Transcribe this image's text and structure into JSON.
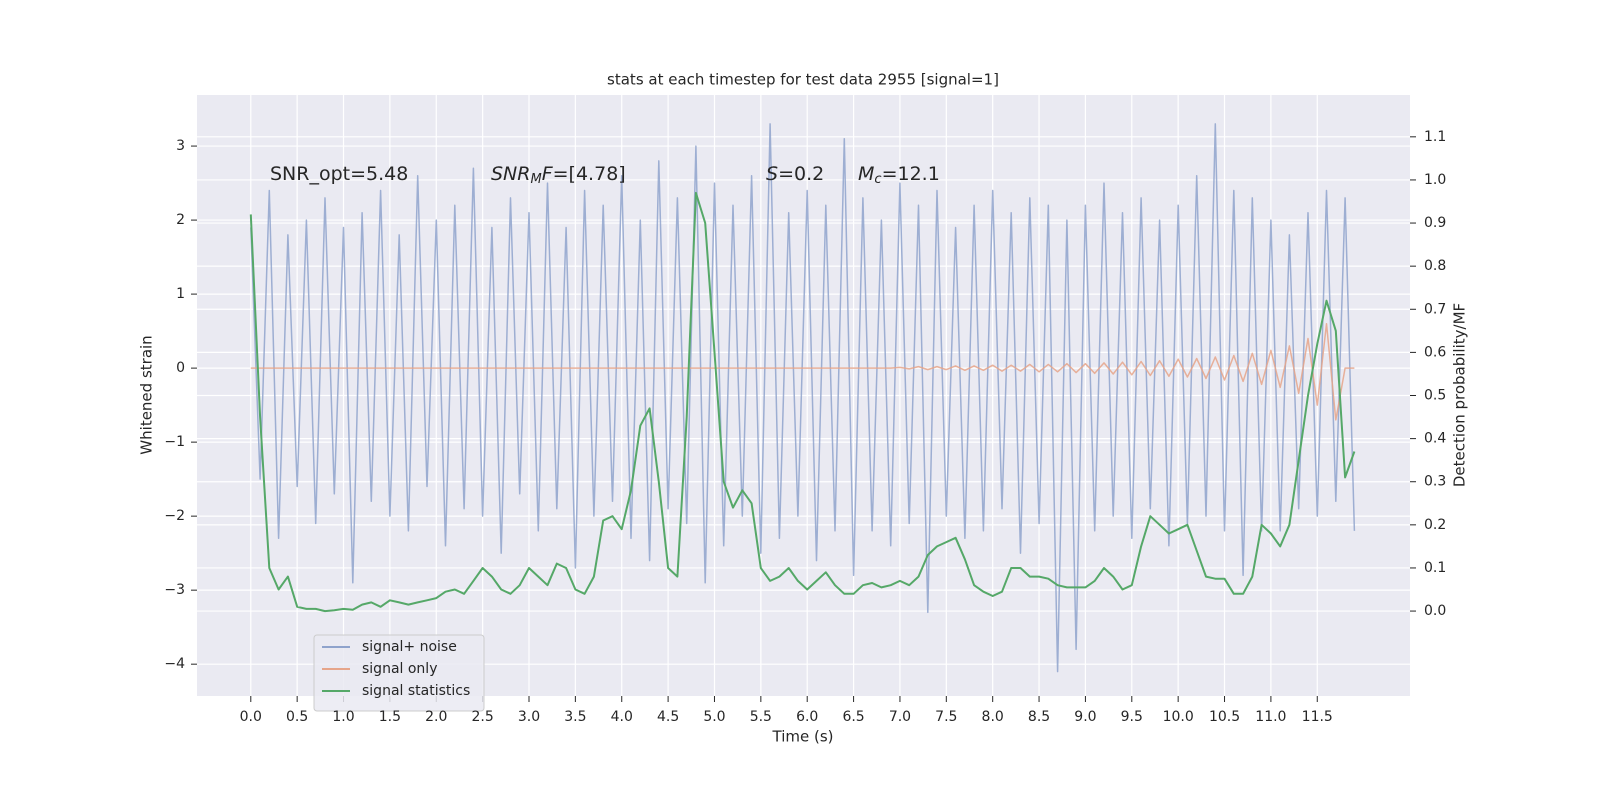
{
  "chart_data": {
    "type": "line",
    "title": "stats at each timestep for test data 2955 [signal=1]",
    "xlabel": "Time (s)",
    "ylabel": "Whitened strain",
    "y2label": "Detection probability/MF",
    "annotations": [
      [
        "SNR_opt=5.48"
      ],
      [
        "SNR",
        "M",
        "F",
        "=[4.78]"
      ],
      [
        "S",
        "=0.2"
      ],
      [
        "M",
        "c",
        "=12.1"
      ]
    ],
    "x": [
      0,
      0.1,
      0.2,
      0.3,
      0.4,
      0.5,
      0.6,
      0.7,
      0.8,
      0.9,
      1,
      1.1,
      1.2,
      1.3,
      1.4,
      1.5,
      1.6,
      1.7,
      1.8,
      1.9,
      2,
      2.1,
      2.2,
      2.3,
      2.4,
      2.5,
      2.6,
      2.7,
      2.8,
      2.9,
      3,
      3.1,
      3.2,
      3.3,
      3.4,
      3.5,
      3.6,
      3.7,
      3.8,
      3.9,
      4,
      4.1,
      4.2,
      4.3,
      4.4,
      4.5,
      4.6,
      4.7,
      4.8,
      4.9,
      5,
      5.1,
      5.2,
      5.3,
      5.4,
      5.5,
      5.6,
      5.7,
      5.8,
      5.9,
      6,
      6.1,
      6.2,
      6.3,
      6.4,
      6.5,
      6.6,
      6.7,
      6.8,
      6.9,
      7,
      7.1,
      7.2,
      7.3,
      7.4,
      7.5,
      7.6,
      7.7,
      7.8,
      7.9,
      8,
      8.1,
      8.2,
      8.3,
      8.4,
      8.5,
      8.6,
      8.7,
      8.8,
      8.9,
      9,
      9.1,
      9.2,
      9.3,
      9.4,
      9.5,
      9.6,
      9.7,
      9.8,
      9.9,
      10,
      10.1,
      10.2,
      10.3,
      10.4,
      10.5,
      10.6,
      10.7,
      10.8,
      10.9,
      11,
      11.1,
      11.2,
      11.3,
      11.4,
      11.5,
      11.6,
      11.7,
      11.8,
      11.9
    ],
    "series": [
      {
        "name": "signal+ noise",
        "color": "#8fa3cc",
        "values": [
          1.9,
          -1.5,
          2.4,
          -2.3,
          1.8,
          -1.6,
          2.0,
          -2.1,
          2.3,
          -1.7,
          1.9,
          -2.9,
          2.1,
          -1.8,
          2.4,
          -2.0,
          1.8,
          -2.2,
          2.6,
          -1.6,
          2.0,
          -2.4,
          2.2,
          -1.9,
          2.7,
          -2.0,
          1.9,
          -2.5,
          2.3,
          -1.7,
          2.1,
          -2.2,
          2.5,
          -1.9,
          1.9,
          -2.7,
          2.4,
          -2.0,
          2.2,
          -1.8,
          2.6,
          -2.3,
          2.0,
          -2.6,
          2.8,
          -1.9,
          2.3,
          -2.1,
          3.0,
          -2.9,
          2.5,
          -2.4,
          2.2,
          -2.0,
          2.6,
          -2.5,
          3.3,
          -2.3,
          2.1,
          -2.0,
          2.4,
          -2.6,
          2.2,
          -2.2,
          3.1,
          -2.8,
          2.3,
          -2.2,
          2.0,
          -2.4,
          2.5,
          -2.1,
          2.2,
          -3.3,
          2.4,
          -2.0,
          1.9,
          -2.3,
          2.2,
          -2.2,
          2.4,
          -1.9,
          2.1,
          -2.5,
          2.3,
          -2.1,
          2.2,
          -4.1,
          2.0,
          -3.8,
          2.2,
          -2.2,
          2.5,
          -2.0,
          2.1,
          -2.3,
          2.3,
          -1.9,
          2.0,
          -2.4,
          2.2,
          -2.1,
          2.6,
          -2.0,
          3.3,
          -2.2,
          2.4,
          -2.8,
          2.3,
          -2.2,
          2.0,
          -2.2,
          1.8,
          -1.9,
          2.1,
          -2.0,
          2.4,
          -1.8,
          2.3,
          -2.2
        ]
      },
      {
        "name": "signal only",
        "color": "#e6a58a",
        "values": [
          0,
          0,
          0,
          0,
          0,
          0,
          0,
          0,
          0,
          0,
          0,
          0,
          0,
          0,
          0,
          0,
          0,
          0,
          0,
          0,
          0,
          0,
          0,
          0,
          0,
          0,
          0,
          0,
          0,
          0,
          0,
          0,
          0,
          0,
          0,
          0,
          0,
          0,
          0,
          0,
          0,
          0,
          0,
          0,
          0,
          0,
          0,
          0,
          0,
          0,
          0,
          0,
          0,
          0,
          0,
          0,
          0,
          0,
          0,
          0,
          0,
          0,
          0,
          0,
          0,
          0,
          0,
          0,
          0,
          0,
          0.01,
          -0.01,
          0.02,
          -0.02,
          0.02,
          -0.02,
          0.03,
          -0.03,
          0.03,
          -0.03,
          0.04,
          -0.04,
          0.04,
          -0.04,
          0.05,
          -0.05,
          0.05,
          -0.05,
          0.06,
          -0.06,
          0.06,
          -0.07,
          0.07,
          -0.08,
          0.08,
          -0.09,
          0.09,
          -0.1,
          0.1,
          -0.11,
          0.12,
          -0.12,
          0.13,
          -0.14,
          0.15,
          -0.16,
          0.17,
          -0.18,
          0.2,
          -0.22,
          0.24,
          -0.26,
          0.3,
          -0.34,
          0.4,
          -0.5,
          0.6,
          -0.7,
          0,
          0
        ]
      },
      {
        "name": "signal statistics",
        "color": "#55a868",
        "axis": "y2",
        "values": [
          0.92,
          0.45,
          0.1,
          0.05,
          0.08,
          0.01,
          0.005,
          0.005,
          0.0,
          0.002,
          0.005,
          0.003,
          0.015,
          0.02,
          0.01,
          0.025,
          0.02,
          0.015,
          0.02,
          0.025,
          0.03,
          0.045,
          0.05,
          0.04,
          0.07,
          0.1,
          0.08,
          0.05,
          0.04,
          0.06,
          0.1,
          0.08,
          0.06,
          0.11,
          0.1,
          0.05,
          0.04,
          0.08,
          0.21,
          0.22,
          0.19,
          0.28,
          0.43,
          0.47,
          0.3,
          0.1,
          0.08,
          0.45,
          0.97,
          0.9,
          0.6,
          0.3,
          0.24,
          0.28,
          0.25,
          0.1,
          0.07,
          0.08,
          0.1,
          0.07,
          0.05,
          0.07,
          0.09,
          0.06,
          0.04,
          0.04,
          0.06,
          0.065,
          0.055,
          0.06,
          0.07,
          0.06,
          0.08,
          0.13,
          0.15,
          0.16,
          0.17,
          0.12,
          0.06,
          0.045,
          0.035,
          0.045,
          0.1,
          0.1,
          0.08,
          0.08,
          0.075,
          0.06,
          0.055,
          0.055,
          0.055,
          0.07,
          0.1,
          0.08,
          0.05,
          0.06,
          0.15,
          0.22,
          0.2,
          0.18,
          0.19,
          0.2,
          0.14,
          0.08,
          0.075,
          0.075,
          0.04,
          0.04,
          0.08,
          0.2,
          0.18,
          0.15,
          0.2,
          0.35,
          0.5,
          0.62,
          0.72,
          0.65,
          0.31,
          0.37
        ]
      }
    ],
    "xlim": [
      -0.58,
      12.5
    ],
    "xticks": [
      {
        "value": 0,
        "label": "0.0"
      },
      0.5,
      {
        "value": 1,
        "label": "1.0"
      },
      1.5,
      {
        "value": 2,
        "label": "2.0"
      },
      2.5,
      {
        "value": 3,
        "label": "3.0"
      },
      3.5,
      {
        "value": 4,
        "label": "4.0"
      },
      4.5,
      {
        "value": 5,
        "label": "5.0"
      },
      5.5,
      {
        "value": 6,
        "label": "6.0"
      },
      6.5,
      {
        "value": 7,
        "label": "7.0"
      },
      7.5,
      {
        "value": 8,
        "label": "8.0"
      },
      8.5,
      {
        "value": 9,
        "label": "9.0"
      },
      9.5,
      {
        "value": 10,
        "label": "10.0"
      },
      10.5,
      {
        "value": 11,
        "label": "11.0"
      },
      11.5
    ],
    "ylim": [
      -4.43,
      3.69
    ],
    "yticks": [
      {
        "value": -4,
        "label": "−4"
      },
      {
        "value": -3,
        "label": "−3"
      },
      {
        "value": -2,
        "label": "−2"
      },
      {
        "value": -1,
        "label": "−1"
      },
      0,
      1,
      2,
      3
    ],
    "y2lim": [
      -0.197,
      1.197
    ],
    "y2ticks": [
      {
        "value": 0,
        "label": "0.0"
      },
      0.1,
      0.2,
      0.3,
      0.4,
      0.5,
      0.6,
      0.7,
      0.8,
      0.9,
      {
        "value": 1,
        "label": "1.0"
      },
      1.1
    ],
    "grid": true,
    "legend": "lower left"
  }
}
